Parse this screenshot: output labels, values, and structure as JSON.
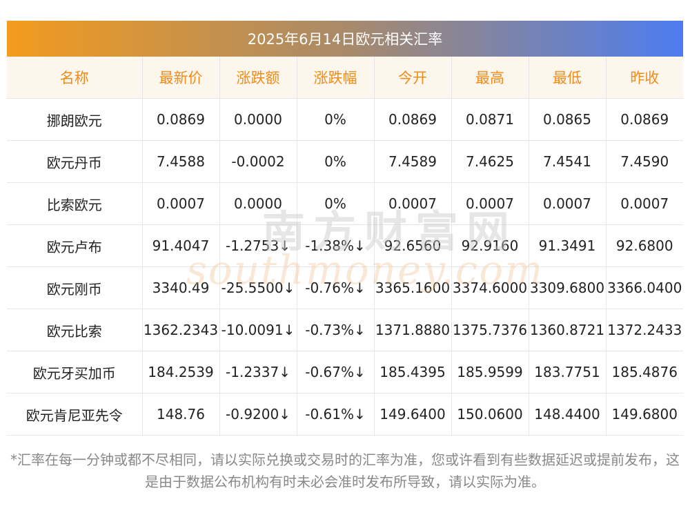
{
  "title": "2025年6月14日欧元相关汇率",
  "columns": [
    "名称",
    "最新价",
    "涨跌额",
    "涨跌幅",
    "今开",
    "最高",
    "最低",
    "昨收"
  ],
  "rows": [
    {
      "name": "挪朗欧元",
      "latest": "0.0869",
      "change": "0.0000",
      "pct": "0%",
      "open": "0.0869",
      "high": "0.0871",
      "low": "0.0865",
      "prev": "0.0869",
      "trend": "flat"
    },
    {
      "name": "欧元丹币",
      "latest": "7.4588",
      "change": "-0.0002",
      "pct": "0%",
      "open": "7.4589",
      "high": "7.4625",
      "low": "7.4541",
      "prev": "7.4590",
      "trend": "flat"
    },
    {
      "name": "比索欧元",
      "latest": "0.0007",
      "change": "0.0000",
      "pct": "0%",
      "open": "0.0007",
      "high": "0.0007",
      "low": "0.0007",
      "prev": "0.0007",
      "trend": "flat"
    },
    {
      "name": "欧元卢布",
      "latest": "91.4047",
      "change": "-1.2753↓",
      "pct": "-1.38%↓",
      "open": "92.6560",
      "high": "92.9160",
      "low": "91.3491",
      "prev": "92.6800",
      "trend": "down"
    },
    {
      "name": "欧元刚币",
      "latest": "3340.49",
      "change": "-25.5500↓",
      "pct": "-0.76%↓",
      "open": "3365.1600",
      "high": "3374.6000",
      "low": "3309.6800",
      "prev": "3366.0400",
      "trend": "down"
    },
    {
      "name": "欧元比索",
      "latest": "1362.2343",
      "change": "-10.0091↓",
      "pct": "-0.73%↓",
      "open": "1371.8880",
      "high": "1375.7376",
      "low": "1360.8721",
      "prev": "1372.2433",
      "trend": "down"
    },
    {
      "name": "欧元牙买加币",
      "latest": "184.2539",
      "change": "-1.2337↓",
      "pct": "-0.67%↓",
      "open": "185.4395",
      "high": "185.9599",
      "low": "183.7751",
      "prev": "185.4876",
      "trend": "down"
    },
    {
      "name": "欧元肯尼亚先令",
      "latest": "148.76",
      "change": "-0.9200↓",
      "pct": "-0.61%↓",
      "open": "149.6400",
      "high": "150.0600",
      "low": "148.4400",
      "prev": "149.6800",
      "trend": "down"
    }
  ],
  "watermark": {
    "cn": "南方财富网",
    "en": "southmoney.com"
  },
  "footnote": "*汇率在每一分钟或都不尽相同，请以实际兑换或交易时的汇率为准，您或许看到有些数据延迟或提前发布，这是由于数据公布机构有时未必会准时发布所导致，请以实际为准。",
  "colors": {
    "header_text": "#f08c1c",
    "header_bg": "#fdf6ec",
    "down_value": "#2f8f2f",
    "banner_start": "#f39b1e",
    "banner_end": "#4d7cf0"
  }
}
